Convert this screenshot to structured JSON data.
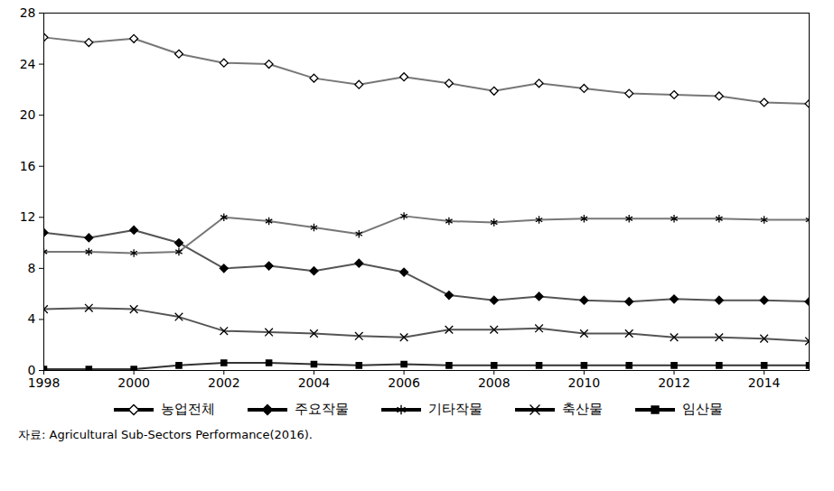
{
  "chart_data": {
    "type": "line",
    "caption": "자료: Agricultural Sub-Sectors Performance(2016).",
    "x": [
      1998,
      1999,
      2000,
      2001,
      2002,
      2003,
      2004,
      2005,
      2006,
      2007,
      2008,
      2009,
      2010,
      2011,
      2012,
      2013,
      2014,
      2015
    ],
    "xlim": [
      1998,
      2015
    ],
    "xticks": [
      1998,
      2000,
      2002,
      2004,
      2006,
      2008,
      2010,
      2012,
      2014
    ],
    "ylim": [
      0,
      28
    ],
    "yticks": [
      0,
      4,
      8,
      12,
      16,
      20,
      24,
      28
    ],
    "grid": false,
    "legend": "bottom",
    "series": [
      {
        "name": "농업전체",
        "color": "#777777",
        "marker": "open_diamond",
        "values": [
          26.1,
          25.7,
          26.0,
          24.8,
          24.1,
          24.0,
          22.9,
          22.4,
          23.0,
          22.5,
          21.9,
          22.5,
          22.1,
          21.7,
          21.6,
          21.5,
          21.0,
          20.9
        ]
      },
      {
        "name": "주요작물",
        "color": "#555555",
        "marker": "diamond",
        "values": [
          10.8,
          10.4,
          11.0,
          10.0,
          8.0,
          8.2,
          7.8,
          8.4,
          7.7,
          5.9,
          5.5,
          5.8,
          5.5,
          5.4,
          5.6,
          5.5,
          5.5,
          5.4
        ]
      },
      {
        "name": "기타작물",
        "color": "#777777",
        "marker": "asterisk",
        "values": [
          9.3,
          9.3,
          9.2,
          9.3,
          12.0,
          11.7,
          11.2,
          10.7,
          12.1,
          11.7,
          11.6,
          11.8,
          11.9,
          11.9,
          11.9,
          11.9,
          11.8,
          11.8
        ]
      },
      {
        "name": "축산물",
        "color": "#555555",
        "marker": "x",
        "values": [
          4.8,
          4.9,
          4.8,
          4.2,
          3.1,
          3.0,
          2.9,
          2.7,
          2.6,
          3.2,
          3.2,
          3.3,
          2.9,
          2.9,
          2.6,
          2.6,
          2.5,
          2.3
        ]
      },
      {
        "name": "임산물",
        "color": "#333333",
        "marker": "square",
        "values": [
          0.1,
          0.1,
          0.1,
          0.4,
          0.6,
          0.6,
          0.5,
          0.4,
          0.5,
          0.4,
          0.4,
          0.4,
          0.4,
          0.4,
          0.4,
          0.4,
          0.4,
          0.4
        ]
      }
    ]
  }
}
